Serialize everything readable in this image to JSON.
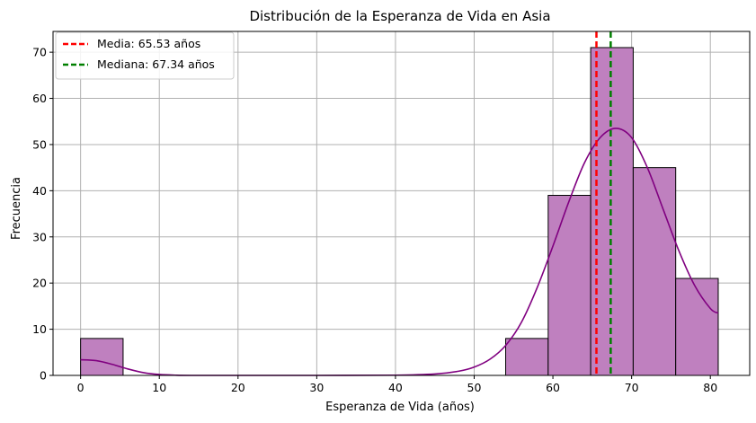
{
  "chart_data": {
    "type": "histogram",
    "title": "Distribución de la Esperanza de Vida en Asia",
    "xlabel": "Esperanza de Vida (años)",
    "ylabel": "Frecuencia",
    "xlim": [
      -3.5,
      85.0
    ],
    "ylim": [
      0,
      74.5
    ],
    "xticks": [
      0,
      10,
      20,
      30,
      40,
      50,
      60,
      70,
      80
    ],
    "yticks": [
      0,
      10,
      20,
      30,
      40,
      50,
      60,
      70
    ],
    "grid": true,
    "legend_position": "top-left",
    "bins": [
      {
        "x0": 0.0,
        "x1": 5.4,
        "count": 8
      },
      {
        "x0": 5.4,
        "x1": 10.8,
        "count": 0
      },
      {
        "x0": 10.8,
        "x1": 16.2,
        "count": 0
      },
      {
        "x0": 16.2,
        "x1": 21.6,
        "count": 0
      },
      {
        "x0": 21.6,
        "x1": 27.0,
        "count": 0
      },
      {
        "x0": 27.0,
        "x1": 32.4,
        "count": 0
      },
      {
        "x0": 32.4,
        "x1": 37.8,
        "count": 0
      },
      {
        "x0": 37.8,
        "x1": 43.2,
        "count": 0
      },
      {
        "x0": 43.2,
        "x1": 48.6,
        "count": 0
      },
      {
        "x0": 48.6,
        "x1": 54.0,
        "count": 0
      },
      {
        "x0": 54.0,
        "x1": 59.4,
        "count": 8
      },
      {
        "x0": 59.4,
        "x1": 64.8,
        "count": 39
      },
      {
        "x0": 64.8,
        "x1": 70.2,
        "count": 71
      },
      {
        "x0": 70.2,
        "x1": 75.6,
        "count": 45
      },
      {
        "x0": 75.6,
        "x1": 81.0,
        "count": 21
      }
    ],
    "kde": {
      "x": [
        0,
        2,
        4,
        6,
        8,
        10,
        12,
        14,
        20,
        30,
        40,
        45,
        48,
        50,
        52,
        54,
        56,
        58,
        60,
        62,
        64,
        66,
        68,
        70,
        72,
        74,
        76,
        78,
        80,
        81
      ],
      "y": [
        3.4,
        3.2,
        2.4,
        1.4,
        0.6,
        0.2,
        0.05,
        0,
        0,
        0,
        0.05,
        0.3,
        0.9,
        1.8,
        3.5,
        6.5,
        11.5,
        19,
        28,
        37.5,
        46,
        51.5,
        53.5,
        51.5,
        45,
        36,
        27,
        19.5,
        14.5,
        13.5
      ]
    },
    "reference_lines": [
      {
        "name": "Media: 65.53 años",
        "x": 65.53,
        "color": "#ff0000",
        "style": "dashed"
      },
      {
        "name": "Mediana: 67.34 años",
        "x": 67.34,
        "color": "#008000",
        "style": "dashed"
      }
    ],
    "colors": {
      "bar_fill": "#bf80bf",
      "bar_edge": "#000000",
      "kde_line": "#800080",
      "grid": "#b0b0b0"
    }
  }
}
